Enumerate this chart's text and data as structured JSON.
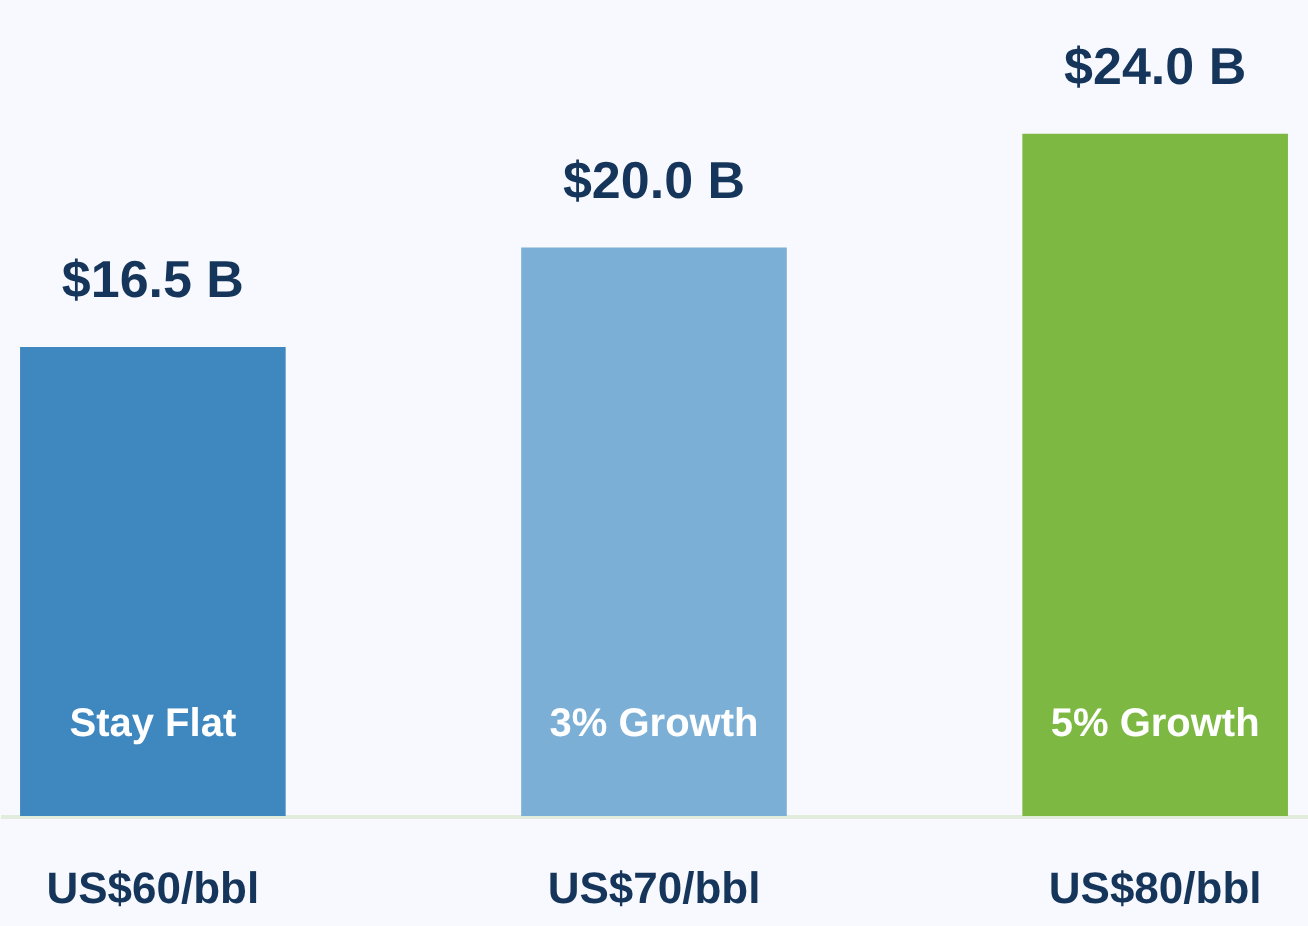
{
  "chart_data": {
    "type": "bar",
    "categories": [
      "US$60/bbl",
      "US$70/bbl",
      "US$80/bbl"
    ],
    "values": [
      16.5,
      20.0,
      24.0
    ],
    "colors": [
      "#3f88bf",
      "#7bafd6",
      "#7db843"
    ],
    "value_labels": [
      "$16.5 B",
      "$20.0 B",
      "$24.0 B"
    ],
    "annotations": [
      "Stay Flat",
      "3% Growth",
      "5% Growth"
    ],
    "grid": false
  }
}
